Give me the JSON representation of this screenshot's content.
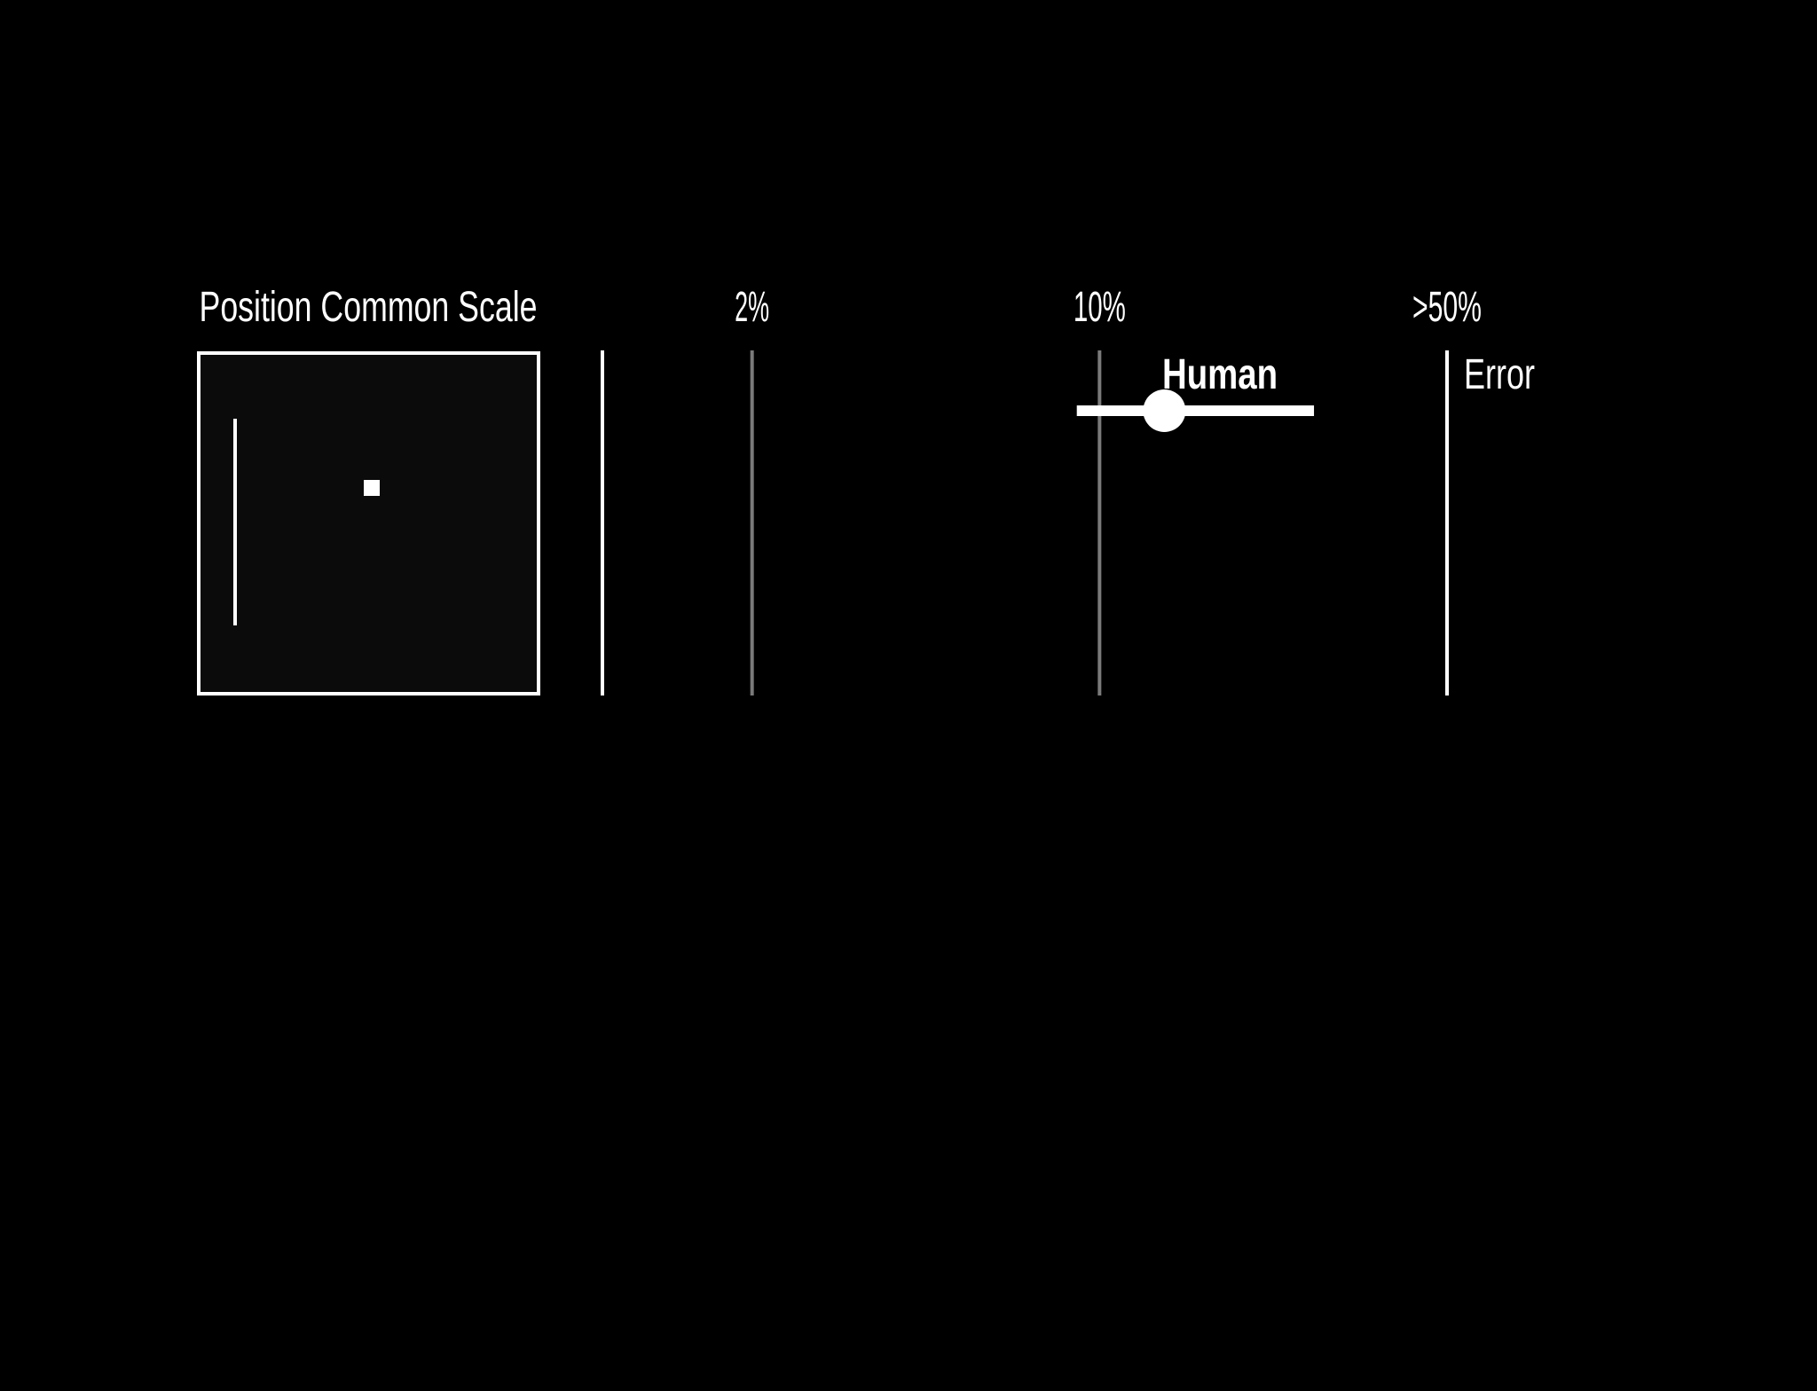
{
  "chart_data": {
    "type": "scatter",
    "title": "Position Common Scale",
    "xlabel": "Error",
    "x_scale": "log",
    "x_ticks": [
      {
        "value": 1,
        "label": ""
      },
      {
        "value": 2,
        "label": "2%"
      },
      {
        "value": 10,
        "label": "10%"
      },
      {
        "value": 50,
        "label": ">50%"
      }
    ],
    "series": [
      {
        "name": "Human",
        "estimate": 13.5,
        "interval": [
          9,
          27
        ]
      }
    ],
    "stimulus": {
      "type": "position-common-scale",
      "axis_level": 1.0,
      "marker_level": 0.68
    },
    "grid": true
  },
  "colors": {
    "background": "#000000",
    "foreground": "#ffffff",
    "gridline": "#7a7a7a",
    "stimulus_fill": "#0b0b0b"
  }
}
